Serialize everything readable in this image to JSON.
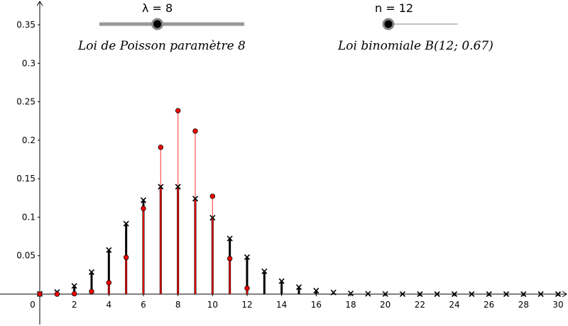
{
  "sliders": [
    {
      "name": "lambda",
      "label": "λ = 8",
      "value": 8,
      "min": 0,
      "max": 20
    },
    {
      "name": "n",
      "label": "n = 12",
      "value": 12,
      "min": 12,
      "max": 50
    }
  ],
  "captions": {
    "poisson": "Loi de Poisson paramètre 8",
    "binomial": "Loi binomiale B(12; 0.67)"
  },
  "chart_data": {
    "type": "scatter",
    "xlim": [
      0,
      30
    ],
    "ylim": [
      0,
      0.35
    ],
    "xticks": [
      0,
      2,
      4,
      6,
      8,
      10,
      12,
      14,
      16,
      18,
      20,
      22,
      24,
      26,
      28,
      30
    ],
    "yticks": [
      0.05,
      0.1,
      0.15,
      0.2,
      0.25,
      0.3,
      0.35
    ],
    "ytick_labels": [
      "0.05",
      "0.1",
      "0.15",
      "0.2",
      "0.25",
      "0.3",
      "0.35"
    ],
    "grid": false,
    "series": [
      {
        "marker": "cross",
        "color": "#000000",
        "x": [
          0,
          1,
          2,
          3,
          4,
          5,
          6,
          7,
          8,
          9,
          10,
          11,
          12,
          13,
          14,
          15,
          16,
          17,
          18,
          19,
          20,
          21,
          22,
          23,
          24,
          25,
          26,
          27,
          28,
          29,
          30
        ],
        "y": [
          0.0003,
          0.0027,
          0.0107,
          0.0286,
          0.0573,
          0.0916,
          0.1221,
          0.1396,
          0.1396,
          0.1241,
          0.0993,
          0.0722,
          0.0481,
          0.0296,
          0.0169,
          0.009,
          0.0045,
          0.0021,
          0.0009,
          0.0004,
          0.0002,
          0.0001,
          0,
          0,
          0,
          0,
          0,
          0,
          0,
          0,
          0
        ]
      },
      {
        "marker": "dot",
        "color": "#ff0000",
        "x": [
          0,
          1,
          2,
          3,
          4,
          5,
          6,
          7,
          8,
          9,
          10,
          11,
          12
        ],
        "y": [
          0,
          0,
          0.0005,
          0.0033,
          0.0149,
          0.0477,
          0.1113,
          0.1908,
          0.2384,
          0.2119,
          0.1272,
          0.0462,
          0.0077
        ]
      }
    ]
  }
}
